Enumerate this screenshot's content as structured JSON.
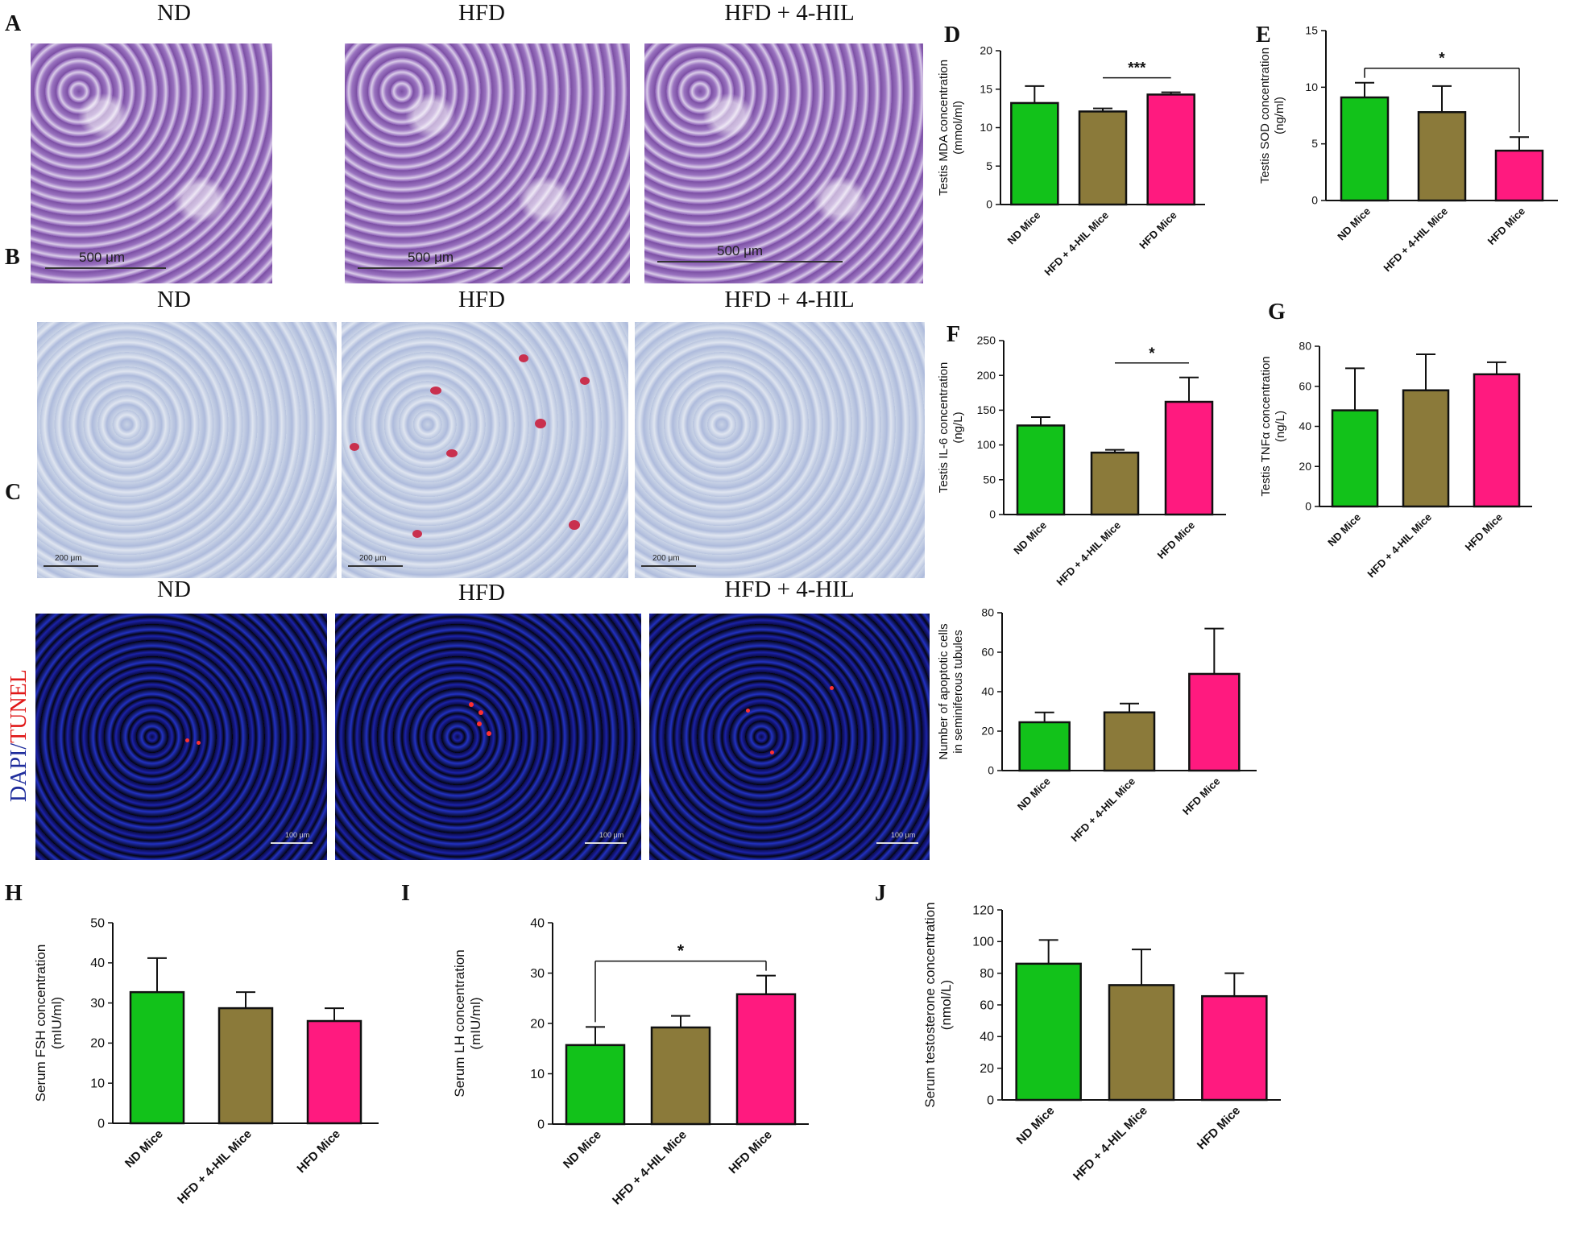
{
  "panel_letters": {
    "A": "A",
    "B": "B",
    "C": "C",
    "D": "D",
    "E": "E",
    "F": "F",
    "G": "G",
    "H": "H",
    "I": "I",
    "J": "J"
  },
  "micro_titles": {
    "A": [
      "ND",
      "HFD",
      "HFD + 4-HIL"
    ],
    "B": [
      "ND",
      "HFD",
      "HFD + 4-HIL"
    ],
    "C": [
      "ND",
      "HFD",
      "HFD + 4-HIL"
    ]
  },
  "scale_labels": {
    "A": [
      "500 μm",
      "500 μm",
      "500 μm"
    ],
    "B": [
      "200 μm",
      "200 μm",
      "200 μm"
    ],
    "C": [
      "100 μm",
      "100 μm",
      "100 μm"
    ]
  },
  "stain_label": {
    "dapi": "DAPI/",
    "tunel": "TUNEL"
  },
  "colors": {
    "nd": "#12c21a",
    "hil": "#8b7a3a",
    "hfd": "#ff1a7f",
    "dapi": "#1e2c9c",
    "tunel": "#e01818"
  },
  "chart_data": [
    {
      "id": "D",
      "type": "bar",
      "categories": [
        "ND Mice",
        "HFD + 4-HIL Mice",
        "HFD Mice"
      ],
      "values": [
        13.2,
        12.1,
        14.3
      ],
      "errors": [
        2.2,
        0.4,
        0.3
      ],
      "ylabel": "Testis MDA concentration\n(mmol/ml)",
      "ylim": [
        0,
        20
      ],
      "yticks": [
        0,
        5,
        10,
        15,
        20
      ],
      "sig": {
        "text": "***",
        "from": 1,
        "to": 2,
        "drop": false
      }
    },
    {
      "id": "E",
      "type": "bar",
      "categories": [
        "ND Mice",
        "HFD + 4-HIL Mice",
        "HFD Mice"
      ],
      "values": [
        9.1,
        7.8,
        4.4
      ],
      "errors": [
        1.3,
        2.3,
        1.2
      ],
      "ylabel": "Testis SOD concentration\n(ng/ml)",
      "ylim": [
        0,
        15
      ],
      "yticks": [
        0,
        5,
        10,
        15
      ],
      "sig": {
        "text": "*",
        "from": 0,
        "to": 2,
        "drop": true
      }
    },
    {
      "id": "F",
      "type": "bar",
      "categories": [
        "ND Mice",
        "HFD + 4-HIL Mice",
        "HFD Mice"
      ],
      "values": [
        128,
        89,
        162
      ],
      "errors": [
        12,
        4,
        35
      ],
      "ylabel": "Testis IL-6 concentration\n(ng/L)",
      "ylim": [
        0,
        250
      ],
      "yticks": [
        0,
        50,
        100,
        150,
        200,
        250
      ],
      "sig": {
        "text": "*",
        "from": 1,
        "to": 2,
        "drop": false
      }
    },
    {
      "id": "G",
      "type": "bar",
      "categories": [
        "ND Mice",
        "HFD + 4-HIL Mice",
        "HFD Mice"
      ],
      "values": [
        48,
        58,
        66
      ],
      "errors": [
        21,
        18,
        6
      ],
      "ylabel": "Testis TNFα concentration\n(ng/L)",
      "ylim": [
        0,
        80
      ],
      "yticks": [
        0,
        20,
        40,
        60,
        80
      ]
    },
    {
      "id": "C-quant",
      "type": "bar",
      "categories": [
        "ND Mice",
        "HFD + 4-HIL Mice",
        "HFD Mice"
      ],
      "values": [
        24.5,
        29.5,
        49
      ],
      "errors": [
        5,
        4.5,
        23
      ],
      "ylabel": "Number of apoptotic cells\nin seminiferous tubules",
      "ylim": [
        0,
        80
      ],
      "yticks": [
        0,
        20,
        40,
        60,
        80
      ]
    },
    {
      "id": "H",
      "type": "bar",
      "categories": [
        "ND Mice",
        "HFD + 4-HIL Mice",
        "HFD Mice"
      ],
      "values": [
        32.7,
        28.7,
        25.5
      ],
      "errors": [
        8.5,
        4,
        3.2
      ],
      "ylabel": "Serum FSH concentration\n(mIU/ml)",
      "ylim": [
        0,
        50
      ],
      "yticks": [
        0,
        10,
        20,
        30,
        40,
        50
      ]
    },
    {
      "id": "I",
      "type": "bar",
      "categories": [
        "ND Mice",
        "HFD + 4-HIL Mice",
        "HFD Mice"
      ],
      "values": [
        15.7,
        19.2,
        25.8
      ],
      "errors": [
        3.6,
        2.3,
        3.7
      ],
      "ylabel": "Serum LH concentration\n(mIU/ml)",
      "ylim": [
        0,
        40
      ],
      "yticks": [
        0,
        10,
        20,
        30,
        40
      ],
      "sig": {
        "text": "*",
        "from": 0,
        "to": 2,
        "drop": true
      }
    },
    {
      "id": "J",
      "type": "bar",
      "categories": [
        "ND Mice",
        "HFD + 4-HIL Mice",
        "HFD Mice"
      ],
      "values": [
        86,
        72.5,
        65.5
      ],
      "errors": [
        15,
        22.5,
        14.5
      ],
      "ylabel": "Serum testosterone concentration\n(nmol/L)",
      "ylim": [
        0,
        120
      ],
      "yticks": [
        0,
        20,
        40,
        60,
        80,
        100,
        120
      ]
    }
  ]
}
